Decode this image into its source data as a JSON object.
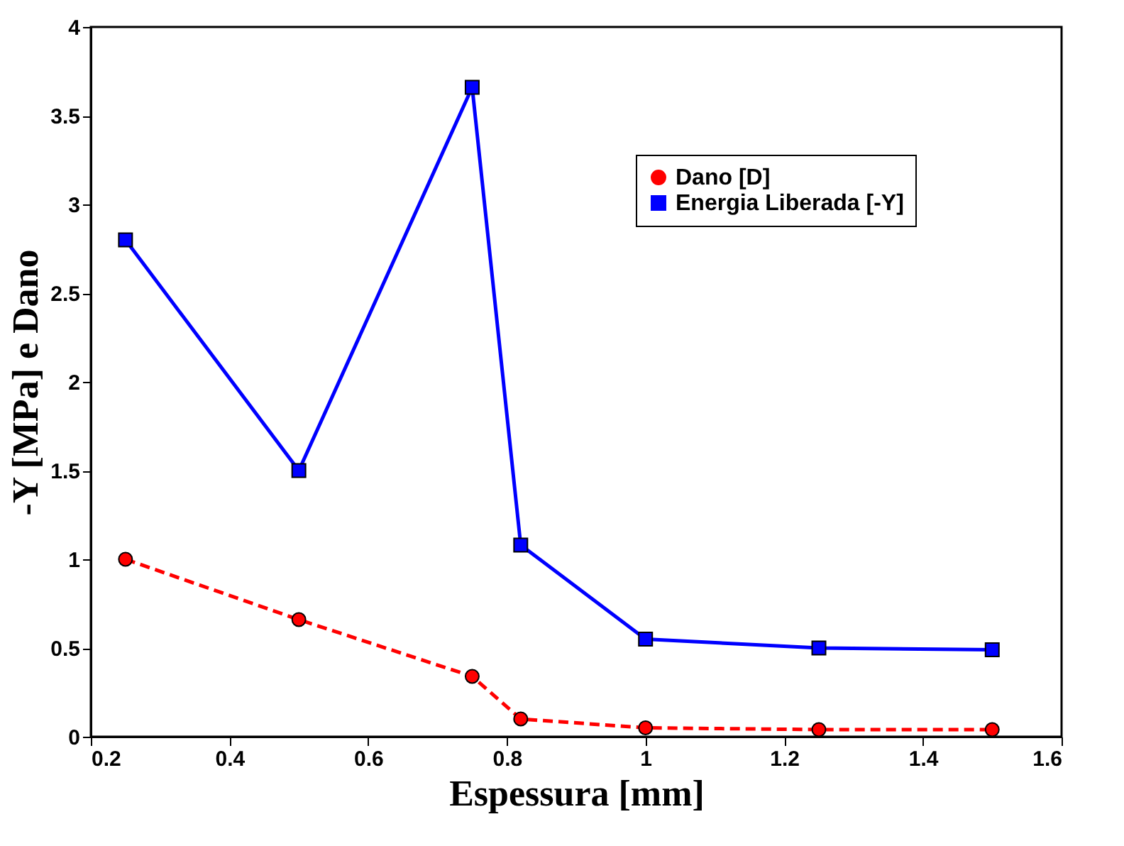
{
  "chart_data": {
    "type": "line",
    "xlabel": "Espessura [mm]",
    "ylabel": "-Y [MPa] e Dano",
    "x": [
      0.25,
      0.5,
      0.75,
      0.82,
      1.0,
      1.25,
      1.5
    ],
    "series": [
      {
        "name": "Dano [D]",
        "color": "#ff0000",
        "values": [
          1.0,
          0.66,
          0.34,
          0.1,
          0.05,
          0.04,
          0.04
        ],
        "marker": "circle",
        "line_style": "dashed"
      },
      {
        "name": "Energia Liberada [-Y]",
        "color": "#0000ff",
        "values": [
          2.8,
          1.5,
          3.66,
          1.08,
          0.55,
          0.5,
          0.49
        ],
        "marker": "square",
        "line_style": "solid"
      }
    ],
    "xlim": [
      0.2,
      1.6
    ],
    "xticks": [
      0.2,
      0.4,
      0.6,
      0.8,
      1,
      1.2,
      1.4,
      1.6
    ],
    "ylim": [
      0,
      4
    ],
    "yticks": [
      0,
      0.5,
      1,
      1.5,
      2,
      2.5,
      3,
      3.5,
      4
    ],
    "grid": false,
    "legend": "top right"
  }
}
